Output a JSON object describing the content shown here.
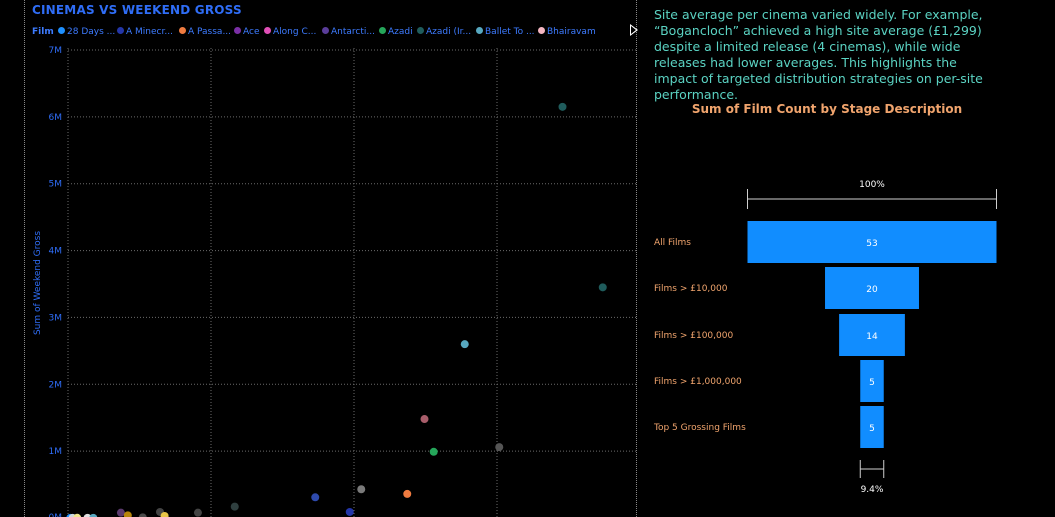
{
  "scatter": {
    "title": "CINEMAS VS WEEKEND GROSS",
    "legend_heading": "Film",
    "legend_items": [
      {
        "label": "28 Days ...",
        "color": "#1e90ff"
      },
      {
        "label": "A Minecr...",
        "color": "#2436a8"
      },
      {
        "label": "A Passa...",
        "color": "#ef7b40"
      },
      {
        "label": "Ace",
        "color": "#7b2fa6"
      },
      {
        "label": "Along C...",
        "color": "#e14fb7"
      },
      {
        "label": "Antarcti...",
        "color": "#5a3d9a"
      },
      {
        "label": "Azadi",
        "color": "#25a65a"
      },
      {
        "label": "Azadi (Ir...",
        "color": "#1f5c5c"
      },
      {
        "label": "Ballet To ...",
        "color": "#57a8c0"
      },
      {
        "label": "Bhairavam",
        "color": "#f4b6c2"
      }
    ]
  },
  "chart_data": [
    {
      "type": "scatter",
      "title": "CINEMAS VS WEEKEND GROSS",
      "xlabel": "",
      "ylabel": "Sum of Weekend Gross",
      "ylim": [
        0,
        7000000
      ],
      "yticks": [
        {
          "value": 1000000,
          "label": "1M"
        },
        {
          "value": 2000000,
          "label": "2M"
        },
        {
          "value": 3000000,
          "label": "3M"
        },
        {
          "value": 4000000,
          "label": "4M"
        },
        {
          "value": 5000000,
          "label": "5M"
        },
        {
          "value": 6000000,
          "label": "6M"
        },
        {
          "value": 7000000,
          "label": "7M"
        }
      ],
      "grid": true,
      "points": [
        {
          "x": 2,
          "y": 1000,
          "color": "#1e90ff"
        },
        {
          "x": 4,
          "y": 2000,
          "color": "#cfd8dc"
        },
        {
          "x": 8,
          "y": 3000,
          "color": "#f0e68c"
        },
        {
          "x": 17,
          "y": 2000,
          "color": "#e0e0e0"
        },
        {
          "x": 22,
          "y": 2000,
          "color": "#57a8c0"
        },
        {
          "x": 46,
          "y": 80000,
          "color": "#5b3a6e"
        },
        {
          "x": 52,
          "y": 40000,
          "color": "#b8860b"
        },
        {
          "x": 65,
          "y": 10000,
          "color": "#4a4a4a"
        },
        {
          "x": 80,
          "y": 90000,
          "color": "#444444"
        },
        {
          "x": 84,
          "y": 30000,
          "color": "#e8c547"
        },
        {
          "x": 113,
          "y": 80000,
          "color": "#444444"
        },
        {
          "x": 145,
          "y": 170000,
          "color": "#2f3f3f"
        },
        {
          "x": 215,
          "y": 310000,
          "color": "#2e4aad"
        },
        {
          "x": 245,
          "y": 90000,
          "color": "#2436a8"
        },
        {
          "x": 255,
          "y": 430000,
          "color": "#7a7a7a"
        },
        {
          "x": 295,
          "y": 360000,
          "color": "#ef7b40"
        },
        {
          "x": 310,
          "y": 1480000,
          "color": "#a85d6a"
        },
        {
          "x": 318,
          "y": 990000,
          "color": "#25a65a"
        },
        {
          "x": 345,
          "y": 2600000,
          "color": "#57a8c0"
        },
        {
          "x": 375,
          "y": 1060000,
          "color": "#555555"
        },
        {
          "x": 430,
          "y": 6150000,
          "color": "#1f5c5c"
        },
        {
          "x": 465,
          "y": 3450000,
          "color": "#1f5c5c"
        }
      ]
    },
    {
      "type": "bar",
      "title": "Sum of Film Count by Stage Description",
      "categories": [
        "All Films",
        "Films > £10,000",
        "Films > £100,000",
        "Films > £1,000,000",
        "Top 5 Grossing Films"
      ],
      "values": [
        53,
        20,
        14,
        5,
        5
      ],
      "top_label": "100%",
      "bottom_label": "9.4%"
    }
  ],
  "insight": {
    "text": "Site average per cinema varied widely. For example, “Bogancloch” achieved a high site average (£1,299) despite a limited release (4 cinemas), while wide releases had lower averages. This highlights the impact of targeted distribution strategies on per-site performance."
  },
  "colors": {
    "accent_blue": "#1e90ff",
    "title_blue": "#2f6df6",
    "insight_teal": "#5bd3c3",
    "funnel_label_orange": "#f0a46d",
    "background": "#000000"
  }
}
